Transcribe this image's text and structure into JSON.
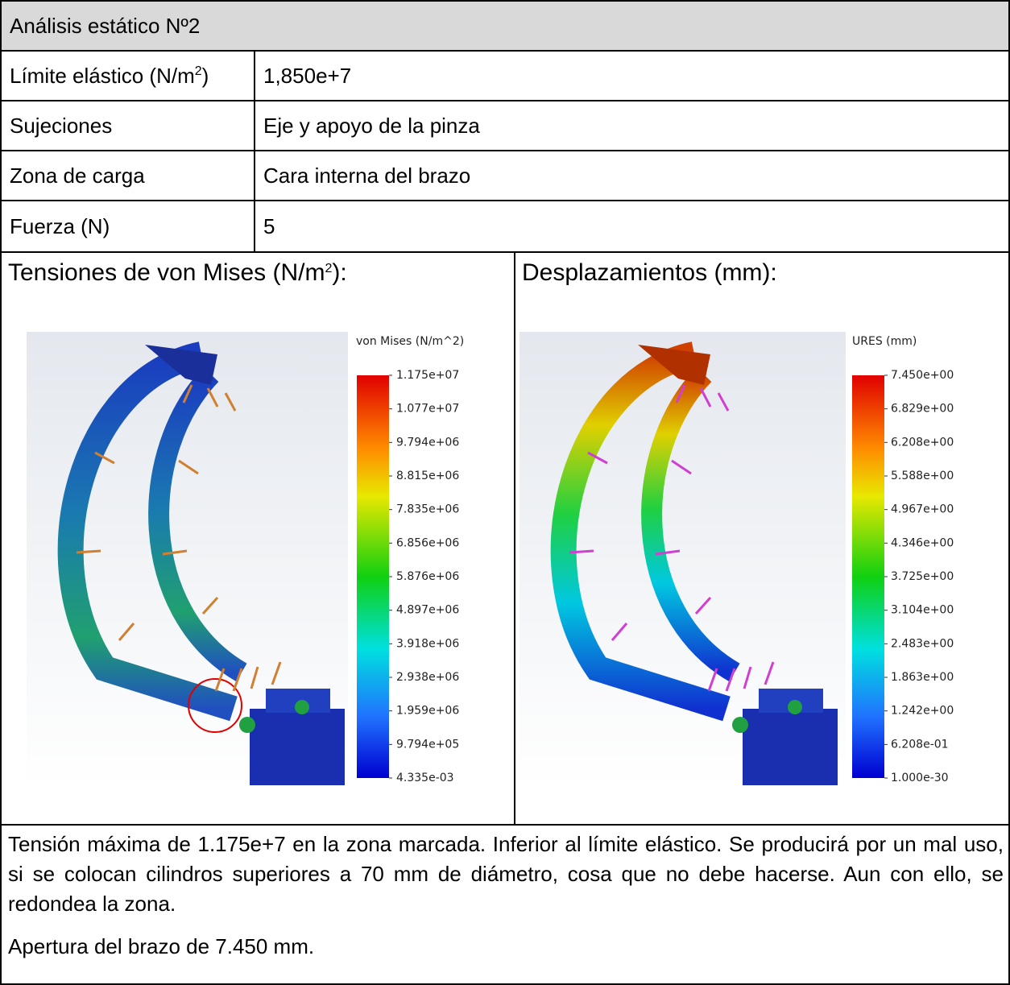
{
  "header": {
    "title": "Análisis estático Nº2"
  },
  "table": {
    "rows": [
      [
        {
          "text": "Límite elástico (N/m",
          "sup": "2",
          "close": ")"
        },
        "1,850e+7"
      ],
      [
        "Sujeciones",
        "Eje y apoyo de la pinza"
      ],
      [
        "Zona de carga",
        "Cara interna del brazo"
      ],
      [
        "Fuerza (N)",
        "5"
      ]
    ]
  },
  "panels": [
    {
      "title": {
        "text": "Tensiones de von Mises (N/m",
        "sup": "2",
        "close": "):"
      },
      "legend": {
        "title": "von Mises (N/m^2)",
        "labels": [
          "1.175e+07",
          "1.077e+07",
          "9.794e+06",
          "8.815e+06",
          "7.835e+06",
          "6.856e+06",
          "5.876e+06",
          "4.897e+06",
          "3.918e+06",
          "2.938e+06",
          "1.959e+06",
          "9.794e+05",
          "4.335e-03"
        ]
      }
    },
    {
      "title": {
        "text": "Desplazamientos (mm):"
      },
      "legend": {
        "title": "URES (mm)",
        "labels": [
          "7.450e+00",
          "6.829e+00",
          "6.208e+00",
          "5.588e+00",
          "4.967e+00",
          "4.346e+00",
          "3.725e+00",
          "3.104e+00",
          "2.483e+00",
          "1.863e+00",
          "1.242e+00",
          "6.208e-01",
          "1.000e-30"
        ]
      }
    }
  ],
  "notes": [
    "Tensión máxima de 1.175e+7 en la zona marcada. Inferior al límite elástico. Se producirá por un mal uso, si se colocan cilindros superiores a 70 mm de diámetro, cosa que no debe hacerse. Aun con ello, se redondea la zona.",
    "Apertura del brazo de 7.450 mm."
  ]
}
